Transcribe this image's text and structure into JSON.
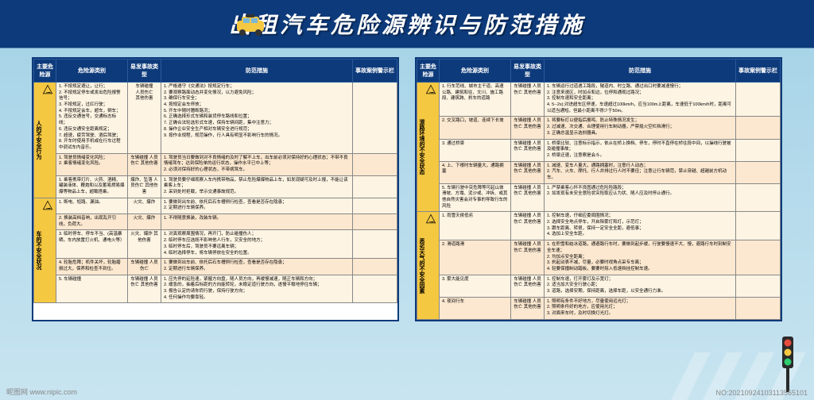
{
  "header": {
    "title": "出租汽车危险源辨识与防范措施"
  },
  "columns": {
    "c1": "主要危险源",
    "c2": "危险源类别",
    "c3": "易发事故类型",
    "c4": "防范措施",
    "c5": "事故案例警示栏"
  },
  "left": {
    "cat1": {
      "label": "人的不安全行为",
      "rows": [
        {
          "risks": "1. 不按规定避让，让行；\n2. 不按规定停车或发出危险报警信号；\n3. 不按规定，过红行驶；\n4. 不按规定会车，超车，倒车；\n5. 违反交通信号，交通标志标线；\n6. 违反交通安全距离规定；\n7. 超速，疲劳驾驶、酒后驾驶；\n8. 开车时使用手机或在行车过程中调试车内音乐。",
          "types": "车辆碰撞\n人员伤亡\n其他伤害",
          "measures": "1. 严格遵守《交通法》按规定行车；\n2. 要观察路面动态并变化情况，以力避免风险；\n3. 确保行车安全；\n4. 按规定会车停放；\n5. 开车中随时臆断路况；\n6. 正确选择形式车辆和装货停车路线和位置；\n7. 正确合法轮选形式车速，保持车辆间距，集中注意力；\n8. 操作企业安全生产相对车辆安全进行规范；\n9. 按作业规程，规范操作，行人具有明显不影响行车的情况。"
        },
        {
          "risks": "1. 驾驶员情绪变化风险；\n2. 乘客情绪变化风险。",
          "types": "车辆碰撞 人员伤亡 其他伤害",
          "measures": "1. 驾驶员当日要做到对不良情绪的及时了解不上车，出车前必须对保持好的心理状态；不带不良情绪驾车；达到保险单的运行状态，操作水平已中上等；\n2. 必须对保持好的心理状态，不带病驾车。"
        },
        {
          "risks": "1. 乘客携带灯片、火药、酒精、罐装液体、鞭炮和以及蓄易燃易爆爆等物品上车，超载搭乘。",
          "types": "爆炸、坠落 人员伤亡 其他伤害",
          "measures": "1. 驾驶员要仔细观察入车内携带物品，禁止危险爆爆物品上车，如发现疑可及时上报，不能让该乘客上车；\n2. 采到处时拒载，举示交通事故规范。"
        }
      ]
    },
    "cat2": {
      "label": "车的不安全状况",
      "rows": [
        {
          "risks": "1. 断电、短路、漏油。",
          "types": "火灾、爆炸",
          "measures": "1. 要做到出车前、依托后石车槽例行检查，查看是否存在隐患；\n2. 定期进行车辆保养。"
        },
        {
          "risks": "2. 换装高档音响，出现乱开引线，负荷大。",
          "types": "火灾、爆炸",
          "measures": "1. 不得随意换装，改装车辆。"
        },
        {
          "risks": "3. 临时停车、停车不当、(高温暴晒，车内放置打火机、通电火等）",
          "types": "火灾、爆炸 其他伤害",
          "measures": "1. 对真观察周围情况，再开门，防止碰撞伤人；\n2. 临时停车应选既不影响他人行车，又安全的地方；\n3. 临时停车后，驾驶员不要远离车辆；\n4. 临时选择停车，将车辆停放在安全的位置。"
        },
        {
          "risks": "4. 轮胎危障；机件关坏，轮胎磨损过大，保养和检查不到位。",
          "types": "车辆碰撞 人员伤亡",
          "measures": "1. 要做到出车前、依托后石车槽例行检查，查看是否存在隐患；\n2. 定期进行车辆保养。"
        },
        {
          "risks": "5. 车辆碰撞",
          "types": "车辆碰撞 人员伤亡 其他伤害",
          "measures": "1. 应先停的延险速，紧握方向盘，随人员方向，再缓慢减速，随正车辆和方向；\n2. 缓急的，抽着后标距的方向能转轮，未稳定道行驶方向，遂慢平稳地停住车辆；\n3. 报告认定的请你而行驶，保持行驶方向；\n4. 任何操作均要靠轻。"
        }
      ]
    }
  },
  "right": {
    "cat1": {
      "label": "道路环境的不安全状态",
      "rows": [
        {
          "risks": "1. 行车范线、城市主干道、高速公路、建筑和往、文川、施工路段、建筑跨、刹车的道路",
          "types": "车辆碰撞 人员伤亡 其他伤害",
          "measures": "1. 车辆运行过道遇工路段，隧道内、时立路、通过出口时要减速慢行；\n2. 注意来速区，时加点和边，位停和通观过路况；\n3. 控制车速和安全距离；\n4. 5--2s);对进超车区停速，车速超过100km/h，应当100m上距离，车速低于100km/h时，距离可以适当通短。但最小距离不得少于50m。"
        },
        {
          "risks": "2. 交叉路口，坡道、连续下长坡",
          "types": "车辆碰撞 人员伤亡 其他伤害",
          "measures": "1. 将要标灯以便指后展鸣、防止特殊情况发生；\n2. 过减速、次交通、合理使用行车制动器，严禁熄火空栏挡滑行；\n3. 正确总温显示选刹器具。"
        },
        {
          "risks": "3. 通过桥梁",
          "types": "车辆碰撞 人员伤亡 其他伤害",
          "measures": "1. 桥梁比较、注意标示指示，依从在桥上换档、停车，停时不直停在桥往段中间，以操线行驶被及碰撞事故；\n2. 桥梁迂速，注意察是会斗。"
        },
        {
          "risks": "4. 上、下根时车辆量大，通路拥塞",
          "types": "车辆碰撞 人员伤亡 其他伤害",
          "measures": "1. 减速、变车人量大，通路拥塞时，注意行人动态；\n2. 汽车、火车、摩托、行人并排过行人时不要径；注意让行车辆范，禁止穿越、超越前方机动车。"
        },
        {
          "risks": "5. 车辆行驶中突危障等可起山体滑坡、方塌、泥沙或、冲拆、或其他自然灾害会对专事的导致行车的风险",
          "types": "车辆碰撞 人员伤亡 其他伤害",
          "measures": "1. 严禁乘客心怀不良图通过危险险路段；\n2. 如发现有未安全意险状突险取应认为状、随人应及时停止通行。"
        }
      ]
    },
    "cat2": {
      "label": "恶劣天气的不安全因素",
      "rows": [
        {
          "risks": "1. 雨雪天侯低劣",
          "types": "车辆碰撞 人员伤亡 其他伤害",
          "measures": "1. 控制车速，仔细应委周围情况；\n2. 选择安全地点停车，开启除雾灯和灯，示范灯；\n3. 跟车距离、转很，保持一定安全全距，避低事；\n4. 选加上安全车距。"
        },
        {
          "risks": "2. 滑道路滑",
          "types": "车辆碰撞 人员伤亡 其他伤害",
          "measures": "1. 在积雪和结冰道路，通避路行车时，要做到起步缓，行驶要慢速不大、慢，避路行车时刻制安全车速；\n2. 均加点安全距离；\n3. 刹起动表不减，尽量，必要时视角点采专车离；\n4. 轻要保撞制动踏板，要要时拐入低速挡挂控制车速。"
        },
        {
          "risks": "3. 雾大能见度",
          "types": "车辆碰撞 人员伤亡 其他伤害",
          "measures": "1. 控制车速，打开雾灯及示宽灯；\n2. 适当加大安全行驶心距；\n3. 道路，选择安期，保持距离，选择车距，以安全通行力准。"
        },
        {
          "risks": "4. 夜间行车",
          "types": "车辆碰撞 人员伤亡 其他伤害",
          "measures": "1. 照明有条件不好地方，尽量使用远光灯；\n2. 照明条件好的地方，应使用光灯；\n3. 对面来车时，及时切换灯光灯。"
        }
      ]
    }
  },
  "footer": {
    "left": "昵图网 www.nipic.com",
    "right": "NO:20210924103113565101"
  },
  "colors": {
    "header_bg": "#0d3a7a",
    "th_bg": "#0d3a7a",
    "vcat_bg": "#f5c842",
    "alt1": "#fdf4e3",
    "alt2": "#fce8d0",
    "body_gradient_top": "#0d3a7a",
    "body_gradient_bottom": "#c8e4f0"
  }
}
